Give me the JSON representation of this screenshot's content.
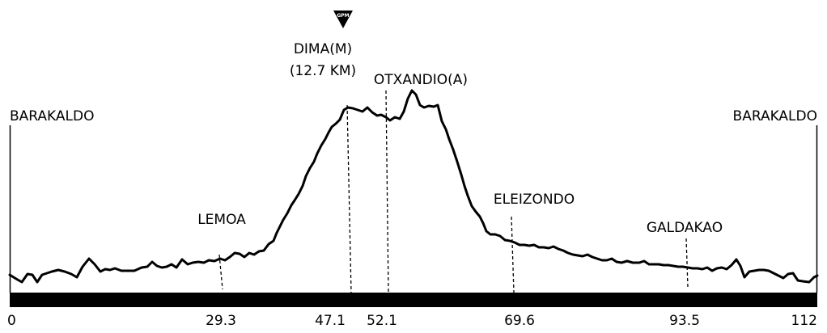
{
  "colors": {
    "ink": "#000000",
    "background": "#ffffff"
  },
  "profile": {
    "distance_ticks": [
      "0",
      "29.3",
      "47.1",
      "52.1",
      "69.6",
      "93.5",
      "112"
    ],
    "places": [
      {
        "id": "barakaldo-start",
        "name": "BARAKALDO",
        "km": 0
      },
      {
        "id": "lemoa",
        "name": "LEMOA",
        "km": 29.3
      },
      {
        "id": "dima",
        "name": "DIMA(M)",
        "sub": "(12.7 KM)",
        "km": 47.1
      },
      {
        "id": "otxandio",
        "name": "OTXANDIO(A)",
        "km": 52.1
      },
      {
        "id": "eleizondo",
        "name": "ELEIZONDO",
        "km": 69.6
      },
      {
        "id": "galdakao",
        "name": "GALDAKAO",
        "km": 93.5
      },
      {
        "id": "barakaldo-finish",
        "name": "BARAKALDO",
        "km": 112
      }
    ],
    "gpm_badge": "GPM"
  }
}
